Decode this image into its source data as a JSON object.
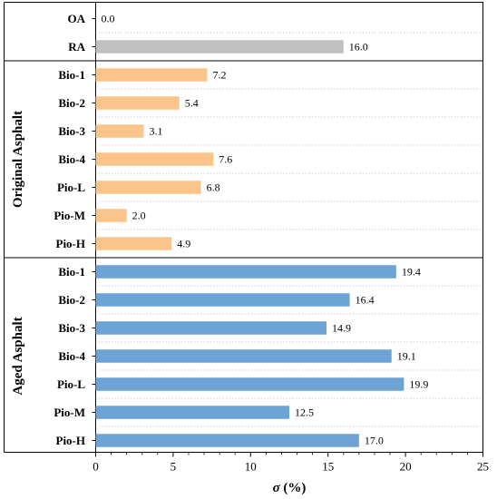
{
  "chart_data": {
    "type": "bar",
    "orientation": "horizontal",
    "xlabel": "σ (%)",
    "xlim": [
      0,
      25
    ],
    "xticks": [
      0,
      5,
      10,
      15,
      20,
      25
    ],
    "grid": "horizontal dotted lines between categories",
    "groups": [
      {
        "label": "",
        "color": "#c0c0c0",
        "categories": [
          "OA",
          "RA"
        ],
        "values": [
          0.0,
          16.0
        ],
        "value_labels": [
          "0.0",
          "16.0"
        ]
      },
      {
        "label": "Original Asphalt",
        "color": "#fbc48a",
        "categories": [
          "Bio-1",
          "Bio-2",
          "Bio-3",
          "Bio-4",
          "Pio-L",
          "Pio-M",
          "Pio-H"
        ],
        "values": [
          7.2,
          5.4,
          3.1,
          7.6,
          6.8,
          2.0,
          4.9
        ],
        "value_labels": [
          "7.2",
          "5.4",
          "3.1",
          "7.6",
          "6.8",
          "2.0",
          "4.9"
        ]
      },
      {
        "label": "Aged Asphalt",
        "color": "#6ea3d6",
        "categories": [
          "Bio-1",
          "Bio-2",
          "Bio-3",
          "Bio-4",
          "Pio-L",
          "Pio-M",
          "Pio-H"
        ],
        "values": [
          19.4,
          16.4,
          14.9,
          19.1,
          19.9,
          12.5,
          17.0
        ],
        "value_labels": [
          "19.4",
          "16.4",
          "14.9",
          "19.1",
          "19.9",
          "12.5",
          "17.0"
        ]
      }
    ]
  }
}
